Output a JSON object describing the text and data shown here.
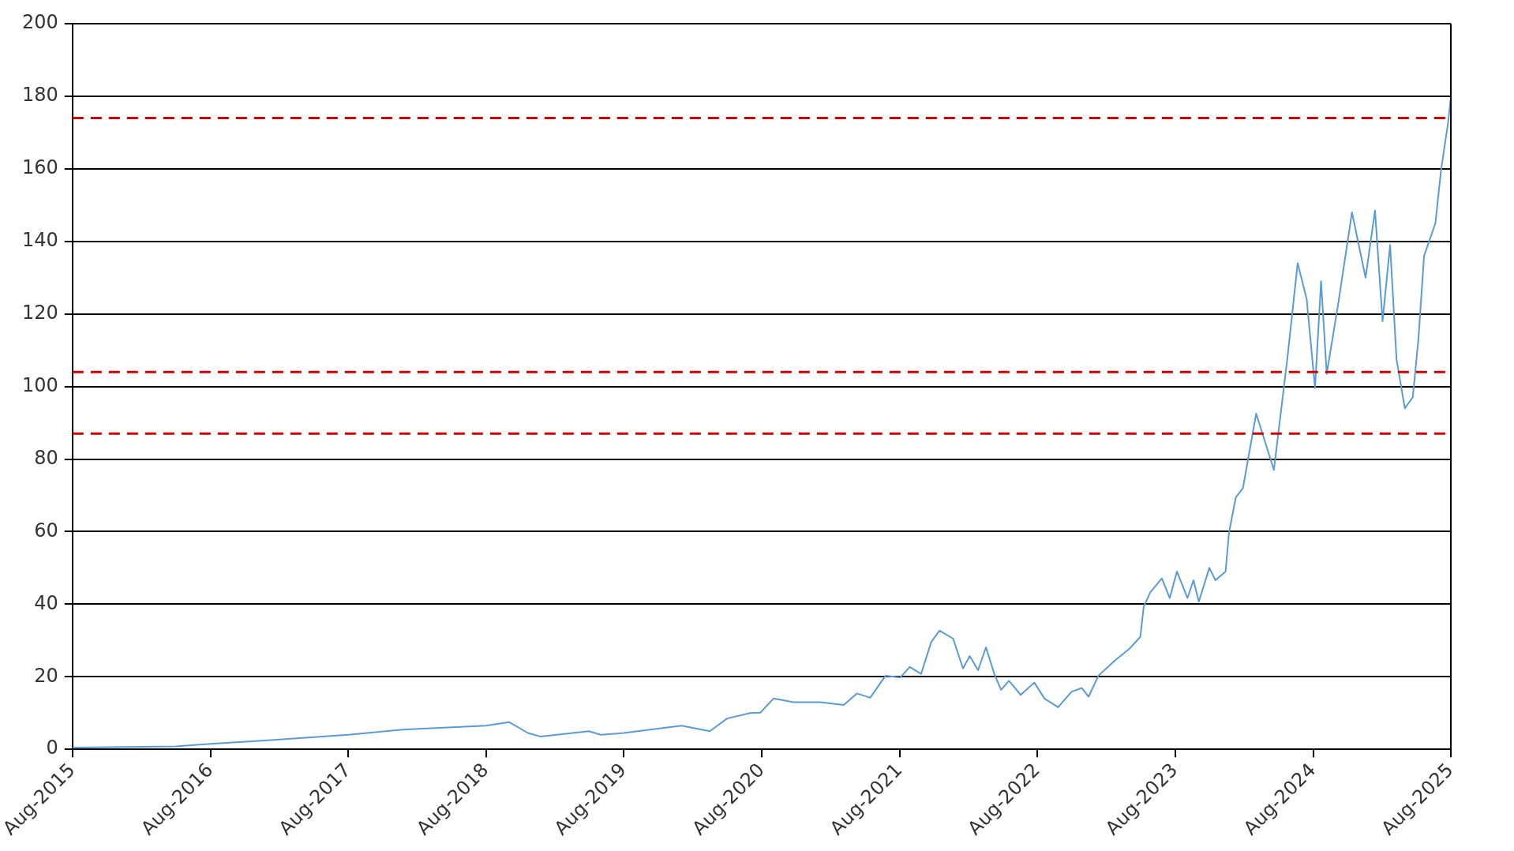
{
  "chart_data": {
    "type": "line",
    "x": [
      "2015-08-01",
      "2016-05-01",
      "2016-08-01",
      "2017-01-01",
      "2017-08-01",
      "2018-01-01",
      "2018-08-01",
      "2018-10-01",
      "2018-11-20",
      "2018-12-24",
      "2019-05-01",
      "2019-06-01",
      "2019-08-01",
      "2020-01-01",
      "2020-03-16",
      "2020-05-01",
      "2020-07-01",
      "2020-07-28",
      "2020-09-01",
      "2020-10-24",
      "2021-01-03",
      "2021-03-06",
      "2021-04-10",
      "2021-05-15",
      "2021-06-25",
      "2021-08-03",
      "2021-08-28",
      "2021-09-27",
      "2021-10-24",
      "2021-11-15",
      "2021-12-21",
      "2022-01-16",
      "2022-02-03",
      "2022-02-25",
      "2022-03-18",
      "2022-04-09",
      "2022-04-27",
      "2022-05-18",
      "2022-06-18",
      "2022-07-24",
      "2022-08-20",
      "2022-09-25",
      "2022-10-31",
      "2022-11-27",
      "2022-12-15",
      "2023-01-10",
      "2023-02-25",
      "2023-04-01",
      "2023-05-01",
      "2023-05-10",
      "2023-05-27",
      "2023-06-27",
      "2023-07-18",
      "2023-08-06",
      "2023-09-03",
      "2023-09-19",
      "2023-10-03",
      "2023-10-31",
      "2023-11-16",
      "2023-12-13",
      "2023-12-22",
      "2024-01-09",
      "2024-01-28",
      "2024-03-03",
      "2024-04-19",
      "2024-05-25",
      "2024-06-21",
      "2024-07-15",
      "2024-08-06",
      "2024-08-22",
      "2024-09-06",
      "2024-10-06",
      "2024-11-12",
      "2024-12-18",
      "2025-01-12",
      "2025-02-01",
      "2025-02-21",
      "2025-03-10",
      "2025-04-01",
      "2025-04-22",
      "2025-05-07",
      "2025-05-22",
      "2025-06-21",
      "2025-07-06",
      "2025-07-25",
      "2025-07-31"
    ],
    "series": [
      {
        "color": "#5b9bd5",
        "values": [
          0.5,
          0.8,
          1.5,
          2.5,
          4,
          5.5,
          6.5,
          7.5,
          4.5,
          3.5,
          5,
          4,
          4.5,
          6.5,
          5,
          8.5,
          10,
          10.1,
          14,
          13,
          13,
          12.2,
          15.4,
          14.2,
          20.3,
          19.8,
          22.7,
          20.8,
          29.6,
          32.7,
          30.5,
          22.3,
          25.7,
          21.8,
          28.1,
          20.8,
          16.4,
          18.9,
          15,
          18.4,
          14,
          11.6,
          15.9,
          16.9,
          14.5,
          20.3,
          24.7,
          27.6,
          31,
          39.3,
          43.2,
          47.1,
          41.7,
          49,
          41.7,
          46.6,
          40.7,
          50,
          46.6,
          49,
          59.7,
          69.4,
          72,
          92.5,
          77,
          108,
          134,
          124,
          99.6,
          129,
          103.5,
          122.5,
          148,
          130,
          148.5,
          118,
          139,
          107.5,
          94,
          97,
          113,
          136,
          145,
          159.6,
          173,
          179
        ]
      }
    ],
    "xlim": [
      "2015-08-01",
      "2025-08-01"
    ],
    "xticks": [
      {
        "value": "2015-08-01",
        "label": "Aug-2015"
      },
      {
        "value": "2016-08-01",
        "label": "Aug-2016"
      },
      {
        "value": "2017-08-01",
        "label": "Aug-2017"
      },
      {
        "value": "2018-08-01",
        "label": "Aug-2018"
      },
      {
        "value": "2019-08-01",
        "label": "Aug-2019"
      },
      {
        "value": "2020-08-01",
        "label": "Aug-2020"
      },
      {
        "value": "2021-08-01",
        "label": "Aug-2021"
      },
      {
        "value": "2022-08-01",
        "label": "Aug-2022"
      },
      {
        "value": "2023-08-01",
        "label": "Aug-2023"
      },
      {
        "value": "2024-08-01",
        "label": "Aug-2024"
      },
      {
        "value": "2025-08-01",
        "label": "Aug-2025"
      }
    ],
    "ylim": [
      0,
      200
    ],
    "yticks": [
      0,
      20,
      40,
      60,
      80,
      100,
      120,
      140,
      160,
      180,
      200
    ],
    "ref_lines": [
      {
        "axis": "y",
        "value": 174,
        "color": "#cc0000",
        "line_style": "dashed"
      },
      {
        "axis": "y",
        "value": 104,
        "color": "#cc0000",
        "line_style": "dashed"
      },
      {
        "axis": "y",
        "value": 87,
        "color": "#cc0000",
        "line_style": "dashed"
      }
    ],
    "grid": "y",
    "legend": false,
    "marker": "none",
    "line_style": "solid"
  }
}
